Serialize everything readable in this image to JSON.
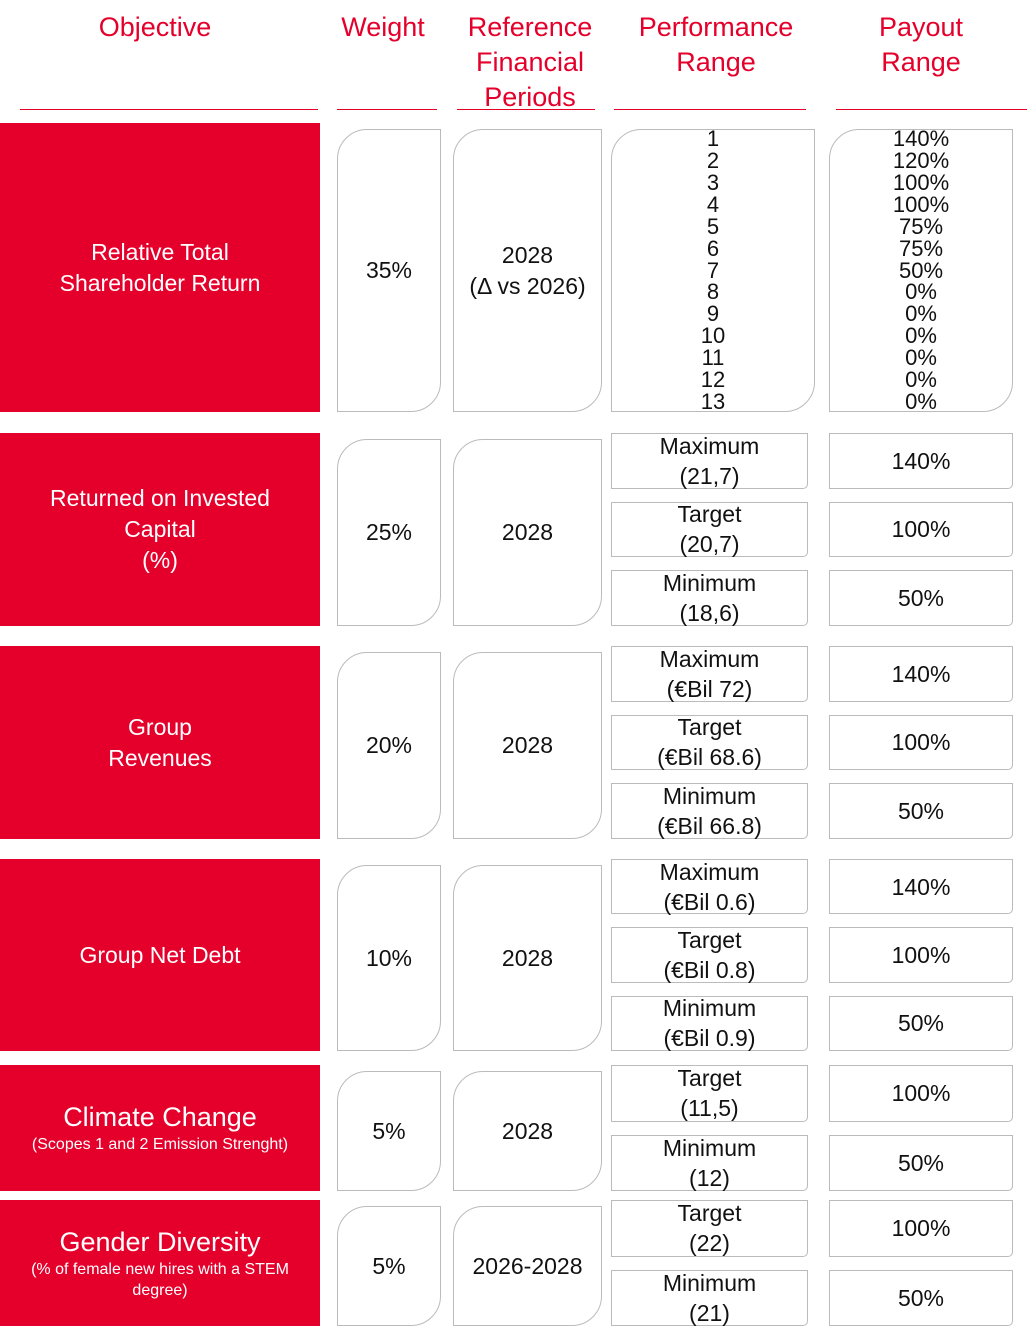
{
  "header": [
    "Objective",
    "Weight",
    "Reference\nFinancial\nPeriods",
    "Performance\nRange",
    "Payout\nRange"
  ],
  "rows": [
    {
      "objective": {
        "title": "Relative Total\nShareholder Return"
      },
      "weight": "35%",
      "period": "2028\n(Δ vs 2026)",
      "performance": [
        "1",
        "2",
        "3",
        "4",
        "5",
        "6",
        "7",
        "8",
        "9",
        "10",
        "11",
        "12",
        "13"
      ],
      "payout": [
        "140%",
        "120%",
        "100%",
        "100%",
        "75%",
        "75%",
        "50%",
        "0%",
        "0%",
        "0%",
        "0%",
        "0%",
        "0%"
      ]
    },
    {
      "objective": {
        "title": "Returned on Invested\nCapital\n(%)"
      },
      "weight": "25%",
      "period": "2028",
      "performance": [
        {
          "label": "Maximum",
          "value": "(21,7)"
        },
        {
          "label": "Target",
          "value": "(20,7)"
        },
        {
          "label": "Minimum",
          "value": "(18,6)"
        }
      ],
      "payout": [
        "140%",
        "100%",
        "50%"
      ]
    },
    {
      "objective": {
        "title": "Group\nRevenues"
      },
      "weight": "20%",
      "period": "2028",
      "performance": [
        {
          "label": "Maximum",
          "value": "(€Bil  72)"
        },
        {
          "label": "Target",
          "value": "(€Bil  68.6)"
        },
        {
          "label": "Minimum",
          "value": "(€Bil  66.8)"
        }
      ],
      "payout": [
        "140%",
        "100%",
        "50%"
      ]
    },
    {
      "objective": {
        "title": "Group Net Debt"
      },
      "weight": "10%",
      "period": "2028",
      "performance": [
        {
          "label": "Maximum",
          "value": "(€Bil 0.6)"
        },
        {
          "label": "Target",
          "value": "(€Bil  0.8)"
        },
        {
          "label": "Minimum",
          "value": "(€Bil  0.9)"
        }
      ],
      "payout": [
        "140%",
        "100%",
        "50%"
      ]
    },
    {
      "objective": {
        "title": "Climate Change",
        "subtitle": "(Scopes 1 and 2 Emission Strenght)"
      },
      "weight": "5%",
      "period": "2028",
      "performance": [
        {
          "label": "Target",
          "value": "(11,5)"
        },
        {
          "label": "Minimum",
          "value": "(12)"
        }
      ],
      "payout": [
        "100%",
        "50%"
      ]
    },
    {
      "objective": {
        "title": "Gender Diversity",
        "subtitle": "(% of female new hires with a STEM degree)"
      },
      "weight": "5%",
      "period": "2026-2028",
      "performance": [
        {
          "label": "Target",
          "value": "(22)"
        },
        {
          "label": "Minimum",
          "value": "(21)"
        }
      ],
      "payout": [
        "100%",
        "50%"
      ]
    }
  ]
}
